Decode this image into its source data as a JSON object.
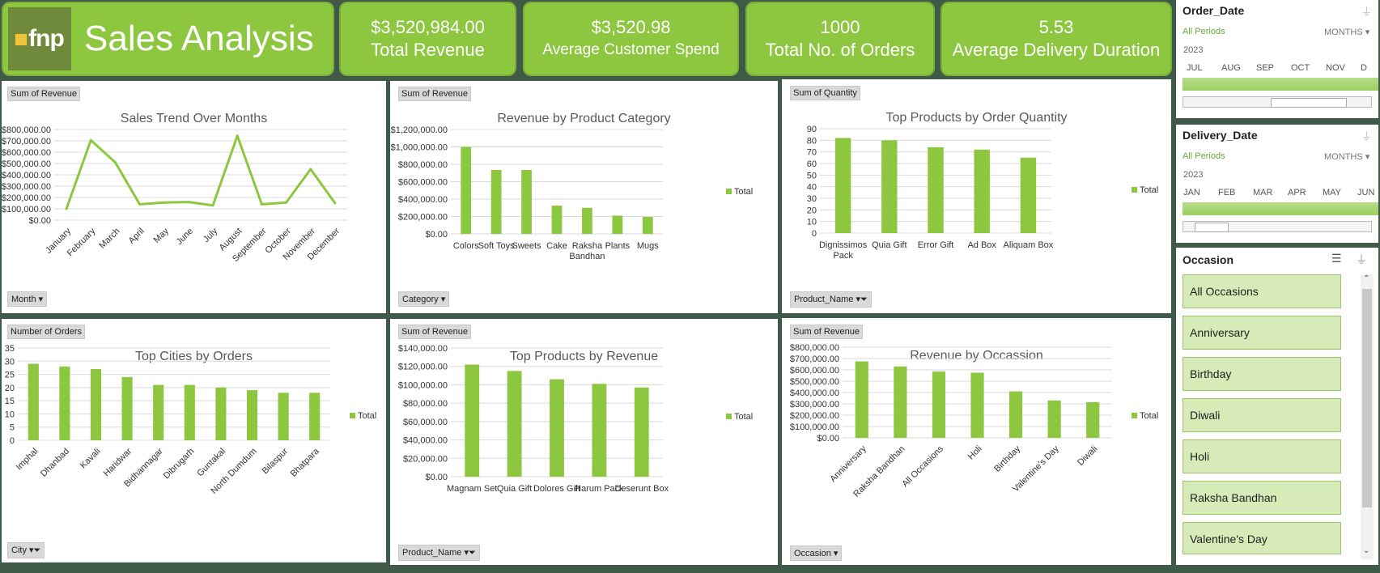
{
  "header": {
    "logo_text": "fnp",
    "title": "Sales Analysis"
  },
  "kpis": [
    {
      "value": "$3,520,984.00",
      "label": "Total Revenue"
    },
    {
      "value": "$3,520.98",
      "label": "Average Customer Spend"
    },
    {
      "value": "1000",
      "label": "Total No. of Orders"
    },
    {
      "value": "5.53",
      "label": "Average Delivery Duration"
    }
  ],
  "colors": {
    "accent": "#8dc63f",
    "line": "#8dc63f",
    "bar": "#8dc63f",
    "background": "#3f5a48"
  },
  "legend_total": "Total",
  "chart_data": [
    {
      "type": "line",
      "field_tag": "Sum of Revenue",
      "axis_tag": "Month",
      "title": "Sales Trend Over Months",
      "categories": [
        "January",
        "February",
        "March",
        "April",
        "May",
        "June",
        "July",
        "August",
        "September",
        "October",
        "November",
        "December"
      ],
      "values": [
        100000,
        705000,
        510000,
        140000,
        155000,
        160000,
        130000,
        745000,
        140000,
        155000,
        450000,
        150000
      ],
      "ylim": [
        0,
        800000
      ],
      "yticks": [
        "$0.00",
        "$100,000.00",
        "$200,000.00",
        "$300,000.00",
        "$400,000.00",
        "$500,000.00",
        "$600,000.00",
        "$700,000.00",
        "$800,000.00"
      ],
      "legend": false
    },
    {
      "type": "bar",
      "field_tag": "Sum of Revenue",
      "axis_tag": "Category",
      "title": "Revenue by Product Category",
      "categories": [
        "Colors",
        "Soft Toys",
        "Sweets",
        "Cake",
        "Raksha Bandhan",
        "Plants",
        "Mugs"
      ],
      "values": [
        1000000,
        735000,
        735000,
        325000,
        300000,
        210000,
        195000
      ],
      "ylim": [
        0,
        1200000
      ],
      "yticks": [
        "$0.00",
        "$200,000.00",
        "$400,000.00",
        "$600,000.00",
        "$800,000.00",
        "$1,000,000.00",
        "$1,200,000.00"
      ],
      "legend": true
    },
    {
      "type": "bar",
      "field_tag": "Sum of Quantity",
      "axis_tag": "Product_Name",
      "title": "Top Products by Order Quantity",
      "categories": [
        "Dignissimos Pack",
        "Quia Gift",
        "Error Gift",
        "Ad Box",
        "Aliquam Box"
      ],
      "values": [
        82,
        80,
        74,
        72,
        65
      ],
      "ylim": [
        0,
        90
      ],
      "yticks": [
        "0",
        "10",
        "20",
        "30",
        "40",
        "50",
        "60",
        "70",
        "80",
        "90"
      ],
      "legend": true
    },
    {
      "type": "bar",
      "field_tag": "Number of Orders",
      "axis_tag": "City",
      "title": "Top Cities by Orders",
      "categories": [
        "Imphal",
        "Dhanbad",
        "Kavali",
        "Haridwar",
        "Bidhannagar",
        "Dibrugarh",
        "Guntakal",
        "North Dumdum",
        "Bilaspur",
        "Bhatpara"
      ],
      "values": [
        29,
        28,
        27,
        24,
        21,
        21,
        20,
        19,
        18,
        18
      ],
      "ylim": [
        0,
        35
      ],
      "yticks": [
        "0",
        "5",
        "10",
        "15",
        "20",
        "25",
        "30",
        "35"
      ],
      "legend": true
    },
    {
      "type": "bar",
      "field_tag": "Sum of Revenue",
      "axis_tag": "Product_Name",
      "title": "Top Products by Revenue",
      "categories": [
        "Magnam Set",
        "Quia Gift",
        "Dolores Gift",
        "Harum Pack",
        "Deserunt Box"
      ],
      "values": [
        122000,
        115000,
        106000,
        101000,
        97000
      ],
      "ylim": [
        0,
        140000
      ],
      "yticks": [
        "$0.00",
        "$20,000.00",
        "$40,000.00",
        "$60,000.00",
        "$80,000.00",
        "$100,000.00",
        "$120,000.00",
        "$140,000.00"
      ],
      "legend": true
    },
    {
      "type": "bar",
      "field_tag": "Sum of Revenue",
      "axis_tag": "Occasion",
      "title": "Revenue by Occassion",
      "categories": [
        "Anniversary",
        "Raksha Bandhan",
        "All Occasions",
        "Holi",
        "Birthday",
        "Valentine's Day",
        "Diwali"
      ],
      "values": [
        675000,
        630000,
        585000,
        575000,
        410000,
        330000,
        315000
      ],
      "ylim": [
        0,
        800000
      ],
      "yticks": [
        "$0.00",
        "$100,000.00",
        "$200,000.00",
        "$300,000.00",
        "$400,000.00",
        "$500,000.00",
        "$600,000.00",
        "$700,000.00",
        "$800,000.00"
      ],
      "legend": true
    }
  ],
  "slicers": {
    "order_date": {
      "title": "Order_Date",
      "periods": "All Periods",
      "mode": "MONTHS",
      "year": "2023",
      "months": [
        "JUL",
        "AUG",
        "SEP",
        "OCT",
        "NOV",
        "D"
      ]
    },
    "delivery_date": {
      "title": "Delivery_Date",
      "periods": "All Periods",
      "mode": "MONTHS",
      "year": "2023",
      "months": [
        "JAN",
        "FEB",
        "MAR",
        "APR",
        "MAY",
        "JUN"
      ]
    },
    "occasion": {
      "title": "Occasion",
      "items": [
        "All Occasions",
        "Anniversary",
        "Birthday",
        "Diwali",
        "Holi",
        "Raksha Bandhan",
        "Valentine's Day"
      ]
    }
  }
}
